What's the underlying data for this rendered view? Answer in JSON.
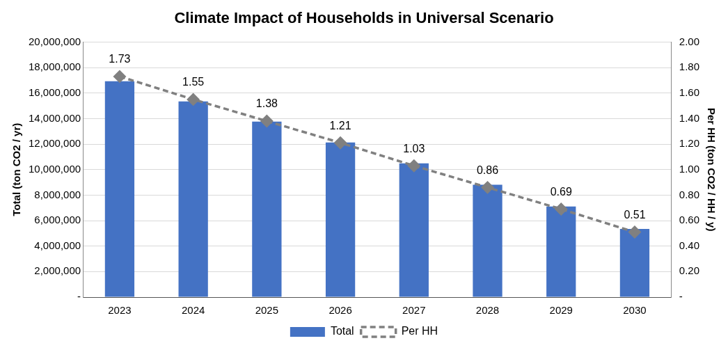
{
  "chart_data": {
    "type": "bar",
    "title": "Climate Impact of Households in Universal Scenario",
    "ylabel": "Total (ton CO2 / yr)",
    "y2label": "Per HH (ton CO2 / HH / y)",
    "categories": [
      "2023",
      "2024",
      "2025",
      "2026",
      "2027",
      "2028",
      "2029",
      "2030"
    ],
    "series": [
      {
        "name": "Total",
        "color": "#4472c4",
        "values": [
          16920000,
          15340000,
          13760000,
          12130000,
          10490000,
          8810000,
          7100000,
          5340000
        ]
      },
      {
        "name": "Per HH",
        "type": "line",
        "axis": "y2",
        "color": "#808080",
        "line_style": "dashed",
        "marker": "diamond",
        "values": [
          1.73,
          1.55,
          1.38,
          1.21,
          1.03,
          0.86,
          0.69,
          0.51
        ],
        "value_labels": [
          "1.73",
          "1.55",
          "1.38",
          "1.21",
          "1.03",
          "0.86",
          "0.69",
          "0.51"
        ]
      }
    ],
    "ylim": [
      0,
      20000000
    ],
    "yticks": [
      {
        "value": 0,
        "label": "-"
      },
      {
        "value": 2000000,
        "label": "2,000,000"
      },
      {
        "value": 4000000,
        "label": "4,000,000"
      },
      {
        "value": 6000000,
        "label": "6,000,000"
      },
      {
        "value": 8000000,
        "label": "8,000,000"
      },
      {
        "value": 10000000,
        "label": "10,000,000"
      },
      {
        "value": 12000000,
        "label": "12,000,000"
      },
      {
        "value": 14000000,
        "label": "14,000,000"
      },
      {
        "value": 16000000,
        "label": "16,000,000"
      },
      {
        "value": 18000000,
        "label": "18,000,000"
      },
      {
        "value": 20000000,
        "label": "20,000,000"
      }
    ],
    "y2lim": [
      0,
      2
    ],
    "y2ticks": [
      {
        "value": 0,
        "label": "-"
      },
      {
        "value": 0.2,
        "label": "0.20"
      },
      {
        "value": 0.4,
        "label": "0.40"
      },
      {
        "value": 0.6,
        "label": "0.60"
      },
      {
        "value": 0.8,
        "label": "0.80"
      },
      {
        "value": 1,
        "label": "1.00"
      },
      {
        "value": 1.2,
        "label": "1.20"
      },
      {
        "value": 1.4,
        "label": "1.40"
      },
      {
        "value": 1.6,
        "label": "1.60"
      },
      {
        "value": 1.8,
        "label": "1.80"
      },
      {
        "value": 2,
        "label": "2.00"
      }
    ],
    "grid": "y",
    "legend": "bottom"
  }
}
